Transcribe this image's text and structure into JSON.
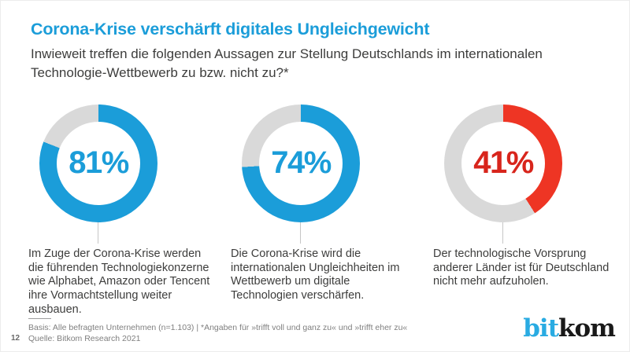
{
  "page": {
    "title": "Corona-Krise verschärft digitales Ungleichgewicht",
    "subtitle": "Inwieweit treffen die folgenden Aussagen zur Stellung Deutschlands im internationalen Technologie-Wettbewerb zu bzw. nicht zu?*"
  },
  "chart_data": {
    "type": "pie",
    "style": "donut",
    "start_angle_deg": 0,
    "direction": "clockwise",
    "ring_color": "#d9d9d9",
    "charts": [
      {
        "label": "81%",
        "value": 81,
        "remainder": 19,
        "color": "#1b9dd9",
        "label_color": "#1b9dd9",
        "statement": "Im Zuge der Corona-Krise werden die führenden Technologiekonzerne wie Alphabet, Amazon oder Tencent ihre Vormachtstellung weiter ausbauen."
      },
      {
        "label": "74%",
        "value": 74,
        "remainder": 26,
        "color": "#1b9dd9",
        "label_color": "#1b9dd9",
        "statement": "Die Corona-Krise wird die internationalen Ungleichheiten im Wettbewerb um digitale Technologien verschärfen."
      },
      {
        "label": "41%",
        "value": 41,
        "remainder": 59,
        "color": "#ee3524",
        "label_color": "#d8251c",
        "statement": "Der technologische Vorsprung anderer Länder ist für Deutschland nicht mehr aufzuholen."
      }
    ]
  },
  "footer": {
    "page_number": "12",
    "basis": "Basis: Alle befragten Unternehmen (n=1.103) | *Angaben für »trifft voll und ganz zu« und »trifft eher zu«",
    "source": "Quelle: Bitkom Research 2021"
  },
  "logo": {
    "part1": "bit",
    "part2": "kom"
  },
  "colors": {
    "accent_blue": "#1b9dd9",
    "accent_red": "#ee3524",
    "ring_gray": "#d9d9d9",
    "text_dark": "#3d3d3c",
    "footnote_gray": "#7f7f7f",
    "logo_cyan": "#29abe2",
    "logo_dark": "#191919"
  }
}
